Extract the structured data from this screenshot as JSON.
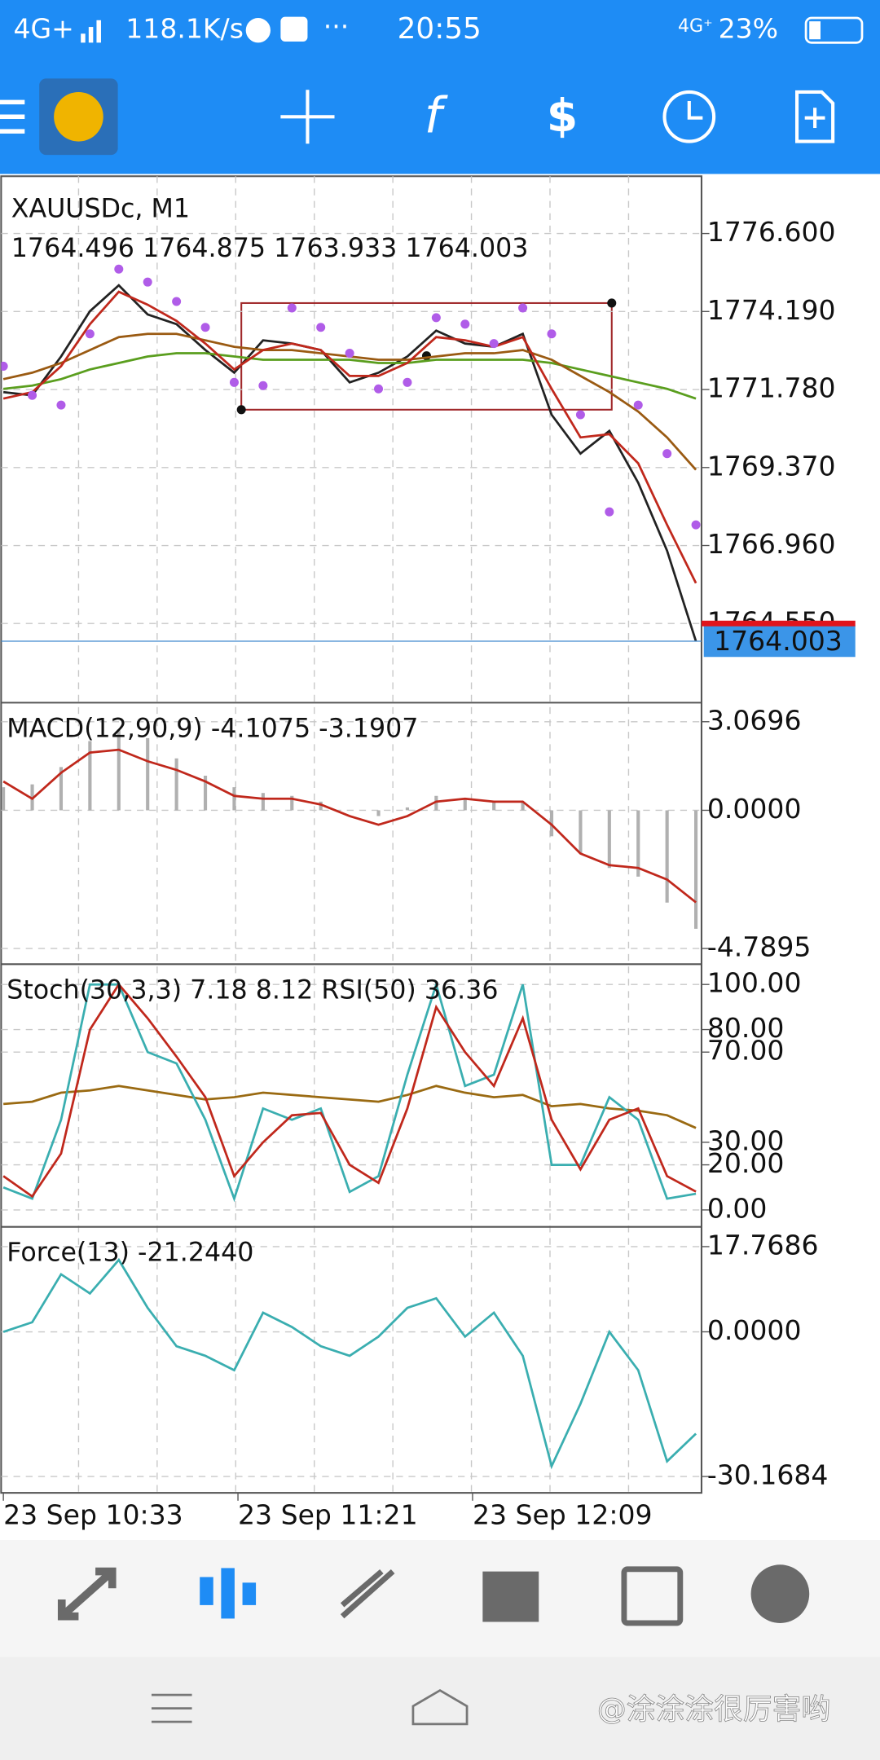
{
  "status_bar": {
    "network": "4G+",
    "speed": "118.1K/s",
    "dots": "···",
    "time": "20:55",
    "signal": "4G⁺",
    "battery": "23%"
  },
  "panels": {
    "main": {
      "symbol": "XAUUSDc, M1",
      "ohlc": "1764.496 1764.875 1763.933 1764.003",
      "ylim": [
        1762.14,
        1778.37
      ],
      "yticks": [
        {
          "value": 1776.6,
          "label": "1776.600"
        },
        {
          "value": 1774.19,
          "label": "1774.190"
        },
        {
          "value": 1771.78,
          "label": "1771.780"
        },
        {
          "value": 1769.37,
          "label": "1769.370"
        },
        {
          "value": 1766.96,
          "label": "1766.960"
        },
        {
          "value": 1764.55,
          "label": "1764.550"
        }
      ],
      "current_price": {
        "value": 1764.003,
        "label": "1764.003"
      },
      "series": [
        {
          "name": "close",
          "color": "#222222",
          "values": [
            1771.7,
            1771.6,
            1772.8,
            1774.2,
            1775.0,
            1774.1,
            1773.8,
            1773.0,
            1772.3,
            1773.3,
            1773.2,
            1773.0,
            1772.0,
            1772.3,
            1772.8,
            1773.6,
            1773.2,
            1773.1,
            1773.5,
            1771.0,
            1769.8,
            1770.5,
            1768.9,
            1766.8,
            1764.003
          ]
        },
        {
          "name": "ma-slow",
          "color": "#5a9e1e",
          "values": [
            1771.8,
            1771.9,
            1772.1,
            1772.4,
            1772.6,
            1772.8,
            1772.9,
            1772.9,
            1772.8,
            1772.7,
            1772.7,
            1772.7,
            1772.7,
            1772.6,
            1772.6,
            1772.7,
            1772.7,
            1772.7,
            1772.7,
            1772.6,
            1772.4,
            1772.2,
            1772.0,
            1771.8,
            1771.5
          ]
        },
        {
          "name": "ma-mid",
          "color": "#9a5a12",
          "values": [
            1772.1,
            1772.3,
            1772.6,
            1773.0,
            1773.4,
            1773.5,
            1773.5,
            1773.3,
            1773.1,
            1773.0,
            1773.0,
            1772.9,
            1772.8,
            1772.7,
            1772.7,
            1772.8,
            1772.9,
            1772.9,
            1773.0,
            1772.7,
            1772.2,
            1771.7,
            1771.1,
            1770.3,
            1769.3
          ]
        },
        {
          "name": "ma-fast",
          "color": "#c0281c",
          "values": [
            1771.5,
            1771.7,
            1772.5,
            1773.8,
            1774.8,
            1774.4,
            1773.9,
            1773.2,
            1772.4,
            1773.0,
            1773.2,
            1773.0,
            1772.2,
            1772.2,
            1772.6,
            1773.4,
            1773.3,
            1773.1,
            1773.4,
            1771.8,
            1770.3,
            1770.4,
            1769.5,
            1767.6,
            1765.8
          ]
        }
      ],
      "sar": {
        "color": "#b05ce8",
        "values": [
          1772.5,
          1771.6,
          1771.3,
          1773.5,
          1775.5,
          1775.1,
          1774.5,
          1773.7,
          1772.0,
          1771.9,
          1774.3,
          1773.7,
          1772.9,
          1771.8,
          1772.0,
          1774.0,
          1773.8,
          1773.2,
          1774.3,
          1773.5,
          1771.0,
          1768.0,
          1771.3,
          1769.8,
          1767.6
        ]
      }
    },
    "macd": {
      "title": "MACD(12,90,9) -4.1075 -3.1907",
      "ylim": [
        -5.295,
        3.692
      ],
      "yticks": [
        {
          "value": 3.0696,
          "label": "3.0696"
        },
        {
          "value": 0,
          "label": "0.0000"
        },
        {
          "value": -4.7895,
          "label": "-4.7895"
        }
      ],
      "histogram": {
        "color": "#b0b0b0",
        "values": [
          0.8,
          0.9,
          1.5,
          2.4,
          2.8,
          2.5,
          1.8,
          1.2,
          0.8,
          0.6,
          0.5,
          0.3,
          0.0,
          -0.2,
          0.1,
          0.5,
          0.4,
          0.3,
          0.3,
          -0.9,
          -1.5,
          -2.0,
          -2.3,
          -3.2,
          -4.1075
        ]
      },
      "series": [
        {
          "name": "signal",
          "color": "#c0281c",
          "values": [
            1.0,
            0.4,
            1.3,
            2.0,
            2.1,
            1.7,
            1.4,
            1.0,
            0.5,
            0.4,
            0.4,
            0.2,
            -0.2,
            -0.5,
            -0.2,
            0.3,
            0.4,
            0.3,
            0.3,
            -0.5,
            -1.5,
            -1.9,
            -2.0,
            -2.4,
            -3.1907
          ]
        }
      ]
    },
    "stoch": {
      "title": "Stoch(30,3,3) 7.18 8.12 RSI(50) 36.36",
      "ylim": [
        -7,
        108.5
      ],
      "yticks": [
        {
          "value": 100,
          "label": "100.00"
        },
        {
          "value": 80,
          "label": "80.00"
        },
        {
          "value": 70,
          "label": "70.00"
        },
        {
          "value": 30,
          "label": "30.00"
        },
        {
          "value": 20,
          "label": "20.00"
        },
        {
          "value": 0,
          "label": "0.00"
        }
      ],
      "series": [
        {
          "name": "rsi",
          "color": "#9a6a12",
          "values": [
            47,
            48,
            52,
            53,
            55,
            53,
            51,
            49,
            50,
            52,
            51,
            50,
            49,
            48,
            51,
            55,
            52,
            50,
            51,
            46,
            47,
            45,
            44,
            42,
            36.36
          ]
        },
        {
          "name": "main",
          "color": "#3aaeb0",
          "values": [
            10,
            5,
            40,
            100,
            100,
            70,
            65,
            40,
            5,
            45,
            40,
            45,
            8,
            15,
            60,
            100,
            55,
            60,
            100,
            20,
            20,
            50,
            40,
            5,
            7.18
          ]
        },
        {
          "name": "signal",
          "color": "#c0281c",
          "values": [
            15,
            6,
            25,
            80,
            100,
            85,
            68,
            50,
            15,
            30,
            42,
            43,
            20,
            12,
            45,
            90,
            70,
            55,
            85,
            40,
            18,
            40,
            45,
            15,
            8.12
          ]
        }
      ]
    },
    "force": {
      "title": "Force(13) -21.2440",
      "ylim": [
        -33.58,
        21.66
      ],
      "yticks": [
        {
          "value": 17.7686,
          "label": "17.7686"
        },
        {
          "value": 0,
          "label": "0.0000"
        },
        {
          "value": -30.1684,
          "label": "-30.1684"
        }
      ],
      "series": [
        {
          "name": "force",
          "color": "#3aaeb0",
          "values": [
            0,
            2,
            12,
            8,
            15,
            5,
            -3,
            -5,
            -8,
            4,
            1,
            -3,
            -5,
            -1,
            5,
            7,
            -1,
            4,
            -5,
            -28,
            -15,
            0,
            -8,
            -27,
            -21.244
          ]
        }
      ]
    }
  },
  "time_labels": [
    "23 Sep 10:33",
    "23 Sep 11:21",
    "23 Sep 12:09"
  ],
  "watermark": "@涂涂涂很厉害哟"
}
